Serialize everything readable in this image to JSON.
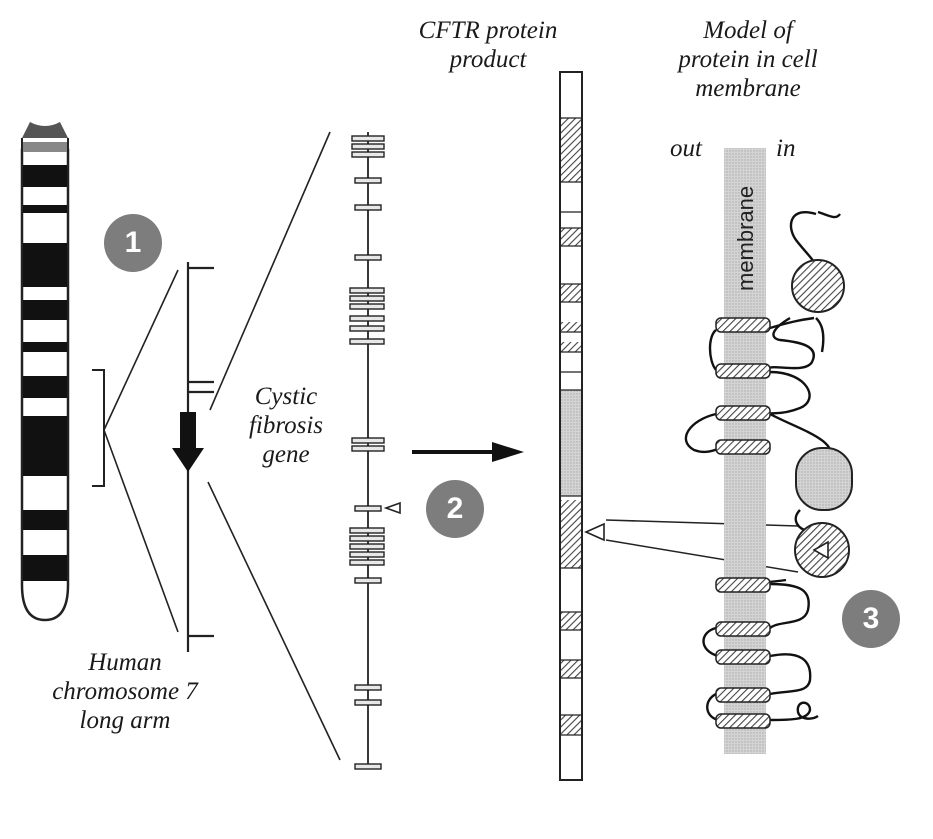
{
  "labels": {
    "chromosome": [
      "Human",
      "chromosome 7",
      "long arm"
    ],
    "gene": [
      "Cystic",
      "fibrosis",
      "gene"
    ],
    "protein_product": [
      "CFTR protein",
      "product"
    ],
    "model": [
      "Model of",
      "protein in cell",
      "membrane"
    ],
    "out": "out",
    "in": "in",
    "membrane": "membrane"
  },
  "steps": [
    "1",
    "2",
    "3"
  ],
  "colors": {
    "ink": "#1a1a1a",
    "badge": "#7d7d7d",
    "membrane_band": "#dedede",
    "hatch": "#555555"
  }
}
